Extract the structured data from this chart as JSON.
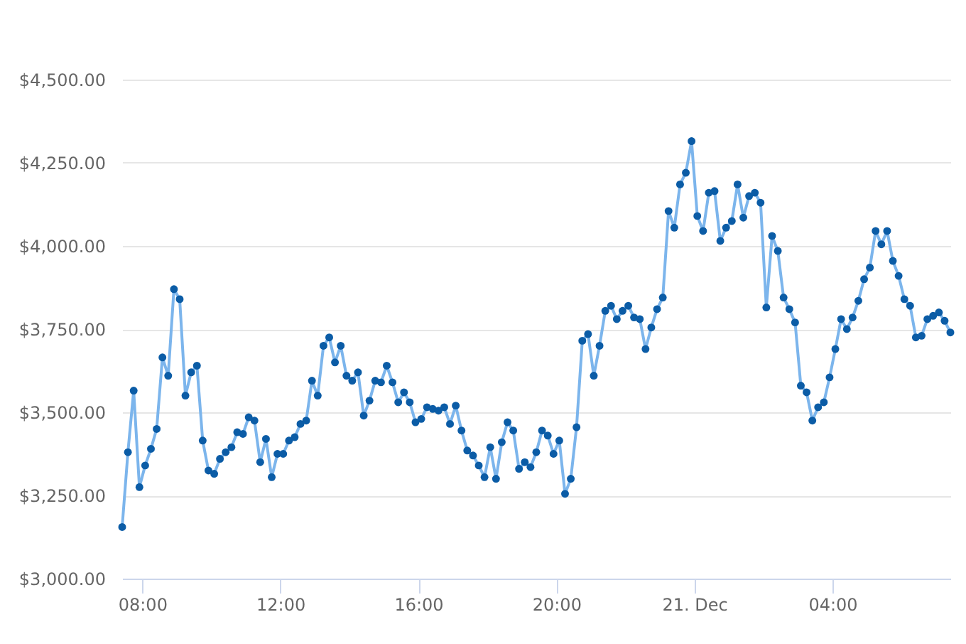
{
  "chart_data": {
    "type": "line",
    "x": [
      "--12-20T07:25",
      "--12-20T07:35",
      "--12-20T07:45",
      "--12-20T07:55",
      "--12-20T08:05",
      "--12-20T08:15",
      "--12-20T08:25",
      "--12-20T08:35",
      "--12-20T08:45",
      "--12-20T08:55",
      "--12-20T09:05",
      "--12-20T09:15",
      "--12-20T09:25",
      "--12-20T09:35",
      "--12-20T09:45",
      "--12-20T09:55",
      "--12-20T10:05",
      "--12-20T10:15",
      "--12-20T10:25",
      "--12-20T10:35",
      "--12-20T10:45",
      "--12-20T10:55",
      "--12-20T11:05",
      "--12-20T11:15",
      "--12-20T11:25",
      "--12-20T11:35",
      "--12-20T11:45",
      "--12-20T11:55",
      "--12-20T12:05",
      "--12-20T12:15",
      "--12-20T12:25",
      "--12-20T12:35",
      "--12-20T12:45",
      "--12-20T12:55",
      "--12-20T13:05",
      "--12-20T13:15",
      "--12-20T13:25",
      "--12-20T13:35",
      "--12-20T13:45",
      "--12-20T13:55",
      "--12-20T14:05",
      "--12-20T14:15",
      "--12-20T14:25",
      "--12-20T14:35",
      "--12-20T14:45",
      "--12-20T14:55",
      "--12-20T15:05",
      "--12-20T15:15",
      "--12-20T15:25",
      "--12-20T15:35",
      "--12-20T15:45",
      "--12-20T15:55",
      "--12-20T16:05",
      "--12-20T16:15",
      "--12-20T16:25",
      "--12-20T16:35",
      "--12-20T16:45",
      "--12-20T16:55",
      "--12-20T17:05",
      "--12-20T17:15",
      "--12-20T17:25",
      "--12-20T17:35",
      "--12-20T17:45",
      "--12-20T17:55",
      "--12-20T18:05",
      "--12-20T18:15",
      "--12-20T18:25",
      "--12-20T18:35",
      "--12-20T18:45",
      "--12-20T18:55",
      "--12-20T19:05",
      "--12-20T19:15",
      "--12-20T19:25",
      "--12-20T19:35",
      "--12-20T19:45",
      "--12-20T19:55",
      "--12-20T20:05",
      "--12-20T20:15",
      "--12-20T20:25",
      "--12-20T20:35",
      "--12-20T20:45",
      "--12-20T20:55",
      "--12-20T21:05",
      "--12-20T21:15",
      "--12-20T21:25",
      "--12-20T21:35",
      "--12-20T21:45",
      "--12-20T21:55",
      "--12-20T22:05",
      "--12-20T22:15",
      "--12-20T22:25",
      "--12-20T22:35",
      "--12-20T22:45",
      "--12-20T22:55",
      "--12-20T23:05",
      "--12-20T23:15",
      "--12-20T23:25",
      "--12-20T23:35",
      "--12-20T23:45",
      "--12-20T23:55",
      "--12-21T00:05",
      "--12-21T00:15",
      "--12-21T00:25",
      "--12-21T00:35",
      "--12-21T00:45",
      "--12-21T00:55",
      "--12-21T01:05",
      "--12-21T01:15",
      "--12-21T01:25",
      "--12-21T01:35",
      "--12-21T01:45",
      "--12-21T01:55",
      "--12-21T02:05",
      "--12-21T02:15",
      "--12-21T02:25",
      "--12-21T02:35",
      "--12-21T02:45",
      "--12-21T02:55",
      "--12-21T03:05",
      "--12-21T03:15",
      "--12-21T03:25",
      "--12-21T03:35",
      "--12-21T03:45",
      "--12-21T03:55",
      "--12-21T04:05",
      "--12-21T04:15",
      "--12-21T04:25",
      "--12-21T04:35",
      "--12-21T04:45",
      "--12-21T04:55",
      "--12-21T05:05",
      "--12-21T05:15",
      "--12-21T05:25",
      "--12-21T05:35",
      "--12-21T05:45",
      "--12-21T05:55",
      "--12-21T06:05",
      "--12-21T06:15",
      "--12-21T06:25",
      "--12-21T06:35",
      "--12-21T06:45",
      "--12-21T06:55",
      "--12-21T07:05",
      "--12-21T07:15",
      "--12-21T07:25"
    ],
    "series": [
      {
        "color": "#7cb5ec",
        "values": [
          3155,
          3380,
          3565,
          3275,
          3340,
          3390,
          3450,
          3665,
          3610,
          3870,
          3840,
          3550,
          3620,
          3640,
          3415,
          3325,
          3315,
          3360,
          3380,
          3395,
          3440,
          3435,
          3485,
          3475,
          3350,
          3420,
          3305,
          3375,
          3375,
          3415,
          3425,
          3465,
          3475,
          3595,
          3550,
          3700,
          3725,
          3650,
          3700,
          3610,
          3595,
          3620,
          3490,
          3535,
          3595,
          3590,
          3640,
          3590,
          3530,
          3560,
          3530,
          3470,
          3480,
          3515,
          3510,
          3505,
          3515,
          3465,
          3520,
          3445,
          3385,
          3370,
          3340,
          3305,
          3395,
          3300,
          3410,
          3470,
          3445,
          3330,
          3350,
          3335,
          3380,
          3445,
          3430,
          3375,
          3415,
          3255,
          3300,
          3455,
          3715,
          3735,
          3610,
          3700,
          3805,
          3820,
          3780,
          3805,
          3820,
          3785,
          3780,
          3690,
          3755,
          3810,
          3845,
          4105,
          4055,
          4185,
          4220,
          4315,
          4090,
          4045,
          4160,
          4165,
          4015,
          4055,
          4075,
          4185,
          4085,
          4150,
          4160,
          4130,
          3815,
          4030,
          3985,
          3845,
          3810,
          3770,
          3580,
          3560,
          3475,
          3515,
          3530,
          3605,
          3690,
          3780,
          3750,
          3785,
          3835,
          3900,
          3935,
          4045,
          4005,
          4045,
          3955,
          3910,
          3840,
          3820,
          3725,
          3730,
          3780,
          3790,
          3800,
          3775,
          3740
        ]
      },
      {
        "type": "scatter",
        "marker": "circle",
        "color": "#0b5ca6",
        "values": [
          3155,
          3380,
          3565,
          3275,
          3340,
          3390,
          3450,
          3665,
          3610,
          3870,
          3840,
          3550,
          3620,
          3640,
          3415,
          3325,
          3315,
          3360,
          3380,
          3395,
          3440,
          3435,
          3485,
          3475,
          3350,
          3420,
          3305,
          3375,
          3375,
          3415,
          3425,
          3465,
          3475,
          3595,
          3550,
          3700,
          3725,
          3650,
          3700,
          3610,
          3595,
          3620,
          3490,
          3535,
          3595,
          3590,
          3640,
          3590,
          3530,
          3560,
          3530,
          3470,
          3480,
          3515,
          3510,
          3505,
          3515,
          3465,
          3520,
          3445,
          3385,
          3370,
          3340,
          3305,
          3395,
          3300,
          3410,
          3470,
          3445,
          3330,
          3350,
          3335,
          3380,
          3445,
          3430,
          3375,
          3415,
          3255,
          3300,
          3455,
          3715,
          3735,
          3610,
          3700,
          3805,
          3820,
          3780,
          3805,
          3820,
          3785,
          3780,
          3690,
          3755,
          3810,
          3845,
          4105,
          4055,
          4185,
          4220,
          4315,
          4090,
          4045,
          4160,
          4165,
          4015,
          4055,
          4075,
          4185,
          4085,
          4150,
          4160,
          4130,
          3815,
          4030,
          3985,
          3845,
          3810,
          3770,
          3580,
          3560,
          3475,
          3515,
          3530,
          3605,
          3690,
          3780,
          3750,
          3785,
          3835,
          3900,
          3935,
          4045,
          4005,
          4045,
          3955,
          3910,
          3840,
          3820,
          3725,
          3730,
          3780,
          3790,
          3800,
          3775,
          3740
        ]
      }
    ],
    "xlim": [
      "--12-20T07:25",
      "--12-21T07:25"
    ],
    "xticks": [
      {
        "value": "--12-20T08:00",
        "label": "08:00"
      },
      {
        "value": "--12-20T12:00",
        "label": "12:00"
      },
      {
        "value": "--12-20T16:00",
        "label": "16:00"
      },
      {
        "value": "--12-20T20:00",
        "label": "20:00"
      },
      {
        "value": "--12-21",
        "label": "21. Dec"
      },
      {
        "value": "--12-21T04:00",
        "label": "04:00"
      }
    ],
    "ylim": [
      3000,
      4500
    ],
    "yticks": [
      {
        "value": 3000,
        "label": "$3,000.00"
      },
      {
        "value": 3250,
        "label": "$3,250.00"
      },
      {
        "value": 3500,
        "label": "$3,500.00"
      },
      {
        "value": 3750,
        "label": "$3,750.00"
      },
      {
        "value": 4000,
        "label": "$4,000.00"
      },
      {
        "value": 4250,
        "label": "$4,250.00"
      },
      {
        "value": 4500,
        "label": "$4,500.00"
      }
    ],
    "grid": "y",
    "line_style": "solid"
  }
}
